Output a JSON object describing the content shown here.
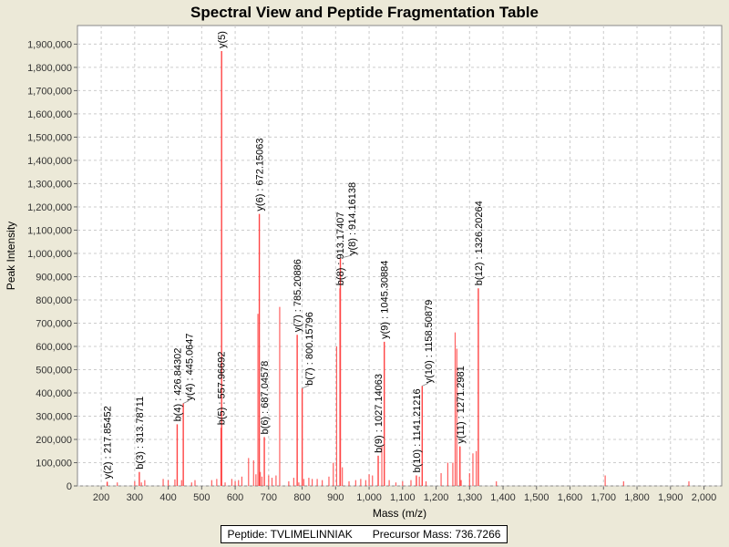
{
  "chart_data": {
    "type": "bar",
    "title": "Spectral View and Peptide Fragmentation Table",
    "xlabel": "Mass (m/z)",
    "ylabel": "Peak Intensity",
    "xlim": [
      129,
      2053
    ],
    "ylim": [
      0,
      1980000
    ],
    "xticks": [
      200,
      300,
      400,
      500,
      600,
      700,
      800,
      900,
      1000,
      1100,
      1200,
      1300,
      1400,
      1500,
      1600,
      1700,
      1800,
      1900,
      2000
    ],
    "xtick_labels": [
      "200",
      "300",
      "400",
      "500",
      "600",
      "700",
      "800",
      "900",
      "1,000",
      "1,100",
      "1,200",
      "1,300",
      "1,400",
      "1,500",
      "1,600",
      "1,700",
      "1,800",
      "1,900",
      "2,000"
    ],
    "yticks": [
      0,
      100000,
      200000,
      300000,
      400000,
      500000,
      600000,
      700000,
      800000,
      900000,
      1000000,
      1100000,
      1200000,
      1300000,
      1400000,
      1500000,
      1600000,
      1700000,
      1800000,
      1900000
    ],
    "ytick_labels": [
      "0",
      "100,000",
      "200,000",
      "300,000",
      "400,000",
      "500,000",
      "600,000",
      "700,000",
      "800,000",
      "900,000",
      "1,000,000",
      "1,100,000",
      "1,200,000",
      "1,300,000",
      "1,400,000",
      "1,500,000",
      "1,600,000",
      "1,700,000",
      "1,800,000",
      "1,900,000"
    ],
    "grid": true,
    "bar_color": "#ff4444",
    "annotated_peaks": [
      {
        "mz": 217.85,
        "intensity": 18000,
        "label": "y(2) : 217.85452"
      },
      {
        "mz": 313.79,
        "intensity": 60000,
        "label": "b(3) : 313.78711"
      },
      {
        "mz": 426.84,
        "intensity": 265000,
        "label": "b(4) : 426.84302"
      },
      {
        "mz": 445.06,
        "intensity": 355000,
        "label": "y(4) : 445.0647"
      },
      {
        "mz": 557.97,
        "intensity": 250000,
        "label": "b(5) : 557.96692"
      },
      {
        "mz": 559.5,
        "intensity": 1870000,
        "label": "y(5)"
      },
      {
        "mz": 672.15,
        "intensity": 1170000,
        "label": "y(6) : 672.15063"
      },
      {
        "mz": 687.05,
        "intensity": 210000,
        "label": "b(6) : 687.04578"
      },
      {
        "mz": 785.21,
        "intensity": 650000,
        "label": "y(7) : 785.20886"
      },
      {
        "mz": 800.16,
        "intensity": 420000,
        "label": "b(7) : 800.15796"
      },
      {
        "mz": 913.17,
        "intensity": 850000,
        "label": "b(8) : 913.17407"
      },
      {
        "mz": 914.16,
        "intensity": 980000,
        "label": "y(8) : 914.16138"
      },
      {
        "mz": 1027.14,
        "intensity": 130000,
        "label": "b(9) : 1027.14063"
      },
      {
        "mz": 1045.31,
        "intensity": 620000,
        "label": "y(9) : 1045.30884"
      },
      {
        "mz": 1141.21,
        "intensity": 45000,
        "label": "b(10) : 1141.21216"
      },
      {
        "mz": 1158.51,
        "intensity": 430000,
        "label": "y(10) : 1158.50879"
      },
      {
        "mz": 1271.3,
        "intensity": 170000,
        "label": "y(11) : 1271.2981"
      },
      {
        "mz": 1326.2,
        "intensity": 850000,
        "label": "b(12) : 1326.20264"
      }
    ],
    "other_peaks": [
      [
        248,
        15000
      ],
      [
        300,
        20000
      ],
      [
        320,
        15000
      ],
      [
        330,
        25000
      ],
      [
        385,
        30000
      ],
      [
        400,
        25000
      ],
      [
        420,
        28000
      ],
      [
        440,
        25000
      ],
      [
        470,
        15000
      ],
      [
        480,
        25000
      ],
      [
        530,
        25000
      ],
      [
        545,
        30000
      ],
      [
        570,
        15000
      ],
      [
        590,
        30000
      ],
      [
        600,
        20000
      ],
      [
        610,
        25000
      ],
      [
        620,
        40000
      ],
      [
        640,
        120000
      ],
      [
        655,
        110000
      ],
      [
        662,
        50000
      ],
      [
        668,
        740000
      ],
      [
        675,
        60000
      ],
      [
        680,
        40000
      ],
      [
        700,
        45000
      ],
      [
        710,
        35000
      ],
      [
        722,
        45000
      ],
      [
        733,
        770000
      ],
      [
        760,
        20000
      ],
      [
        775,
        35000
      ],
      [
        790,
        15000
      ],
      [
        805,
        30000
      ],
      [
        820,
        35000
      ],
      [
        830,
        30000
      ],
      [
        845,
        30000
      ],
      [
        860,
        25000
      ],
      [
        880,
        40000
      ],
      [
        893,
        100000
      ],
      [
        903,
        600000
      ],
      [
        920,
        80000
      ],
      [
        940,
        20000
      ],
      [
        960,
        25000
      ],
      [
        975,
        30000
      ],
      [
        990,
        25000
      ],
      [
        1000,
        50000
      ],
      [
        1010,
        45000
      ],
      [
        1038,
        170000
      ],
      [
        1060,
        25000
      ],
      [
        1080,
        15000
      ],
      [
        1100,
        20000
      ],
      [
        1125,
        25000
      ],
      [
        1150,
        40000
      ],
      [
        1170,
        20000
      ],
      [
        1215,
        55000
      ],
      [
        1235,
        100000
      ],
      [
        1250,
        100000
      ],
      [
        1257,
        660000
      ],
      [
        1262,
        590000
      ],
      [
        1275,
        25000
      ],
      [
        1300,
        55000
      ],
      [
        1310,
        140000
      ],
      [
        1320,
        150000
      ],
      [
        1380,
        20000
      ],
      [
        1705,
        45000
      ],
      [
        1760,
        20000
      ],
      [
        1955,
        20000
      ]
    ]
  },
  "legend": {
    "peptide": "Peptide: TVLIMELINNIAK",
    "precursor": "Precursor Mass: 736.7266"
  }
}
